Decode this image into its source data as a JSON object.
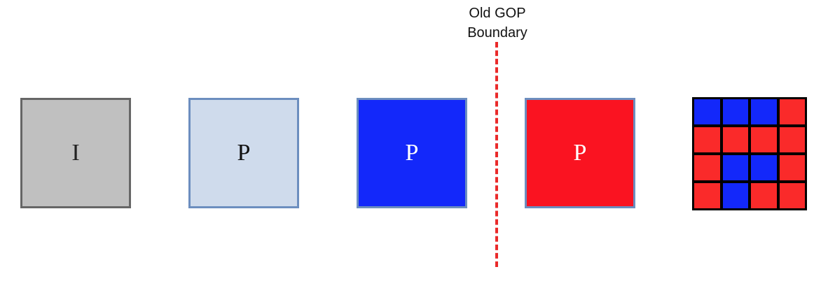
{
  "boundary": {
    "label": "Old GOP\nBoundary",
    "color": "#ea2a2a"
  },
  "frames": [
    {
      "label": "I",
      "fill": "#c0c0c0"
    },
    {
      "label": "P",
      "fill": "#cfdbec"
    },
    {
      "label": "P",
      "fill": "#1328fa"
    },
    {
      "label": "P",
      "fill": "#fa1321"
    }
  ],
  "mosaic": {
    "rows": [
      [
        "blue",
        "blue",
        "blue",
        "red"
      ],
      [
        "red",
        "red",
        "red",
        "red"
      ],
      [
        "red",
        "blue",
        "blue",
        "red"
      ],
      [
        "red",
        "blue",
        "red",
        "red"
      ]
    ],
    "colors": {
      "blue": "#1328fa",
      "red": "#fa2a2a"
    }
  }
}
